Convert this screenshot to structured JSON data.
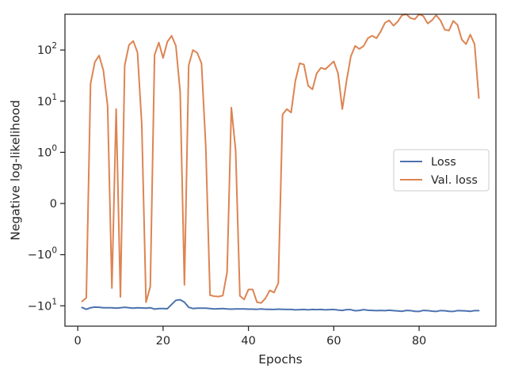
{
  "chart_data": {
    "type": "line",
    "xlabel": "Epochs",
    "ylabel": "Negative log-likelihood",
    "yscale": "symlog",
    "xlim": [
      -3,
      98
    ],
    "ylim": [
      -25,
      500
    ],
    "x_ticks": [
      0,
      20,
      40,
      60,
      80
    ],
    "y_ticks": [
      {
        "value": -10,
        "label": "−10",
        "sup": "1"
      },
      {
        "value": -1,
        "label": "−10",
        "sup": "0"
      },
      {
        "value": 0,
        "label": "0",
        "sup": ""
      },
      {
        "value": 1,
        "label": "10",
        "sup": "0"
      },
      {
        "value": 10,
        "label": "10",
        "sup": "1"
      },
      {
        "value": 100,
        "label": "10",
        "sup": "2"
      }
    ],
    "legend_position": "center-right",
    "grid": false,
    "series": [
      {
        "name": "Loss",
        "color": "#4c72b0",
        "x": [
          1,
          2,
          3,
          4,
          5,
          6,
          7,
          8,
          9,
          10,
          11,
          12,
          13,
          14,
          15,
          16,
          17,
          18,
          19,
          20,
          21,
          22,
          23,
          24,
          25,
          26,
          27,
          28,
          29,
          30,
          31,
          32,
          33,
          34,
          35,
          36,
          37,
          38,
          39,
          40,
          41,
          42,
          43,
          44,
          45,
          46,
          47,
          48,
          49,
          50,
          51,
          52,
          53,
          54,
          55,
          56,
          57,
          58,
          59,
          60,
          61,
          62,
          63,
          64,
          65,
          66,
          67,
          68,
          69,
          70,
          71,
          72,
          73,
          74,
          75,
          76,
          77,
          78,
          79,
          80,
          81,
          82,
          83,
          84,
          85,
          86,
          87,
          88,
          89,
          90,
          91,
          92,
          93,
          94
        ],
        "values": [
          -10.8,
          -11.7,
          -10.9,
          -10.6,
          -10.7,
          -10.9,
          -10.9,
          -10.9,
          -11.1,
          -10.9,
          -10.7,
          -10.9,
          -11.1,
          -10.9,
          -11.0,
          -11.1,
          -10.9,
          -11.6,
          -11.3,
          -11.3,
          -11.4,
          -9.4,
          -7.8,
          -7.6,
          -8.5,
          -10.7,
          -11.3,
          -11.1,
          -11.1,
          -11.1,
          -11.3,
          -11.5,
          -11.4,
          -11.3,
          -11.5,
          -11.6,
          -11.5,
          -11.5,
          -11.5,
          -11.6,
          -11.6,
          -11.7,
          -11.5,
          -11.7,
          -11.7,
          -11.8,
          -11.6,
          -11.7,
          -11.8,
          -11.8,
          -12.0,
          -11.9,
          -11.8,
          -12.0,
          -11.8,
          -11.9,
          -11.8,
          -12.0,
          -11.9,
          -11.8,
          -12.1,
          -12.3,
          -11.9,
          -11.9,
          -12.5,
          -12.3,
          -11.9,
          -12.2,
          -12.3,
          -12.4,
          -12.3,
          -12.4,
          -12.2,
          -12.4,
          -12.6,
          -12.8,
          -12.3,
          -12.4,
          -12.8,
          -12.9,
          -12.3,
          -12.4,
          -12.7,
          -12.9,
          -12.4,
          -12.5,
          -12.8,
          -12.9,
          -12.4,
          -12.5,
          -12.6,
          -12.8,
          -12.4,
          -12.4
        ]
      },
      {
        "name": "Val. loss",
        "color": "#dd8452",
        "x": [
          1,
          2,
          3,
          4,
          5,
          6,
          7,
          8,
          9,
          10,
          11,
          12,
          13,
          14,
          15,
          16,
          17,
          18,
          19,
          20,
          21,
          22,
          23,
          24,
          25,
          26,
          27,
          28,
          29,
          30,
          31,
          32,
          33,
          34,
          35,
          36,
          37,
          38,
          39,
          40,
          41,
          42,
          43,
          44,
          45,
          46,
          47,
          48,
          49,
          50,
          51,
          52,
          53,
          54,
          55,
          56,
          57,
          58,
          59,
          60,
          61,
          62,
          63,
          64,
          65,
          66,
          67,
          68,
          69,
          70,
          71,
          72,
          73,
          74,
          75,
          76,
          77,
          78,
          79,
          80,
          81,
          82,
          83,
          84,
          85,
          86,
          87,
          88,
          89,
          90,
          91,
          92,
          93,
          94
        ],
        "values": [
          -8.2,
          -7.0,
          22,
          58,
          78,
          40,
          8,
          -4.5,
          7,
          -6.7,
          50,
          125,
          150,
          90,
          3.5,
          -8.5,
          -4.2,
          80,
          140,
          70,
          145,
          190,
          120,
          15,
          -3.9,
          50,
          100,
          88,
          55,
          1.3,
          -6.2,
          -6.5,
          -6.6,
          -6.3,
          -2.2,
          7.5,
          1.1,
          -6.4,
          -7.5,
          -4.8,
          -4.8,
          -8.5,
          -8.8,
          -7.1,
          -5.0,
          -5.5,
          -3.6,
          5.5,
          7,
          6,
          25,
          55,
          52,
          20,
          17,
          35,
          45,
          42,
          50,
          60,
          35,
          7,
          25,
          75,
          120,
          105,
          120,
          170,
          190,
          170,
          230,
          340,
          380,
          300,
          360,
          480,
          500,
          420,
          400,
          500,
          460,
          330,
          380,
          480,
          380,
          250,
          240,
          370,
          310,
          160,
          130,
          200,
          130,
          11.5
        ]
      }
    ]
  }
}
